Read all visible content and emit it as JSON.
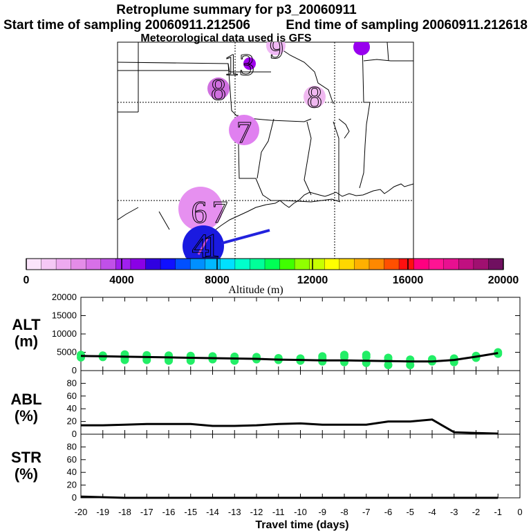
{
  "title": "Retroplume summary for p3_20060911",
  "start_label": "Start time of sampling 20060911.212506",
  "end_label": "End time of sampling 20060911.212618",
  "met_label": "Meteorological data used is GFS",
  "map": {
    "labels": [
      {
        "text": "13",
        "color": "#9900ee"
      },
      {
        "text": "9",
        "color": "#e6a0f0"
      },
      {
        "text": "8",
        "color": "#d070e0"
      },
      {
        "text": "8",
        "color": "#f0b8f0"
      },
      {
        "text": "7",
        "color": "#e080f0"
      },
      {
        "text": "6",
        "color": "#e690f0"
      },
      {
        "text": "7",
        "color": "#e690f0"
      },
      {
        "text": "4",
        "color": "#2222dd"
      },
      {
        "text": "1",
        "color": "#1111cc"
      }
    ]
  },
  "colorbar": {
    "colors": [
      "#fbe4fb",
      "#f5c8f5",
      "#eeaaf0",
      "#e48ce8",
      "#d870e8",
      "#c050e8",
      "#a020ee",
      "#8a00e6",
      "#3000e0",
      "#1010ff",
      "#0050ff",
      "#0090ff",
      "#00b8ff",
      "#00e0ff",
      "#00ffcc",
      "#00ff99",
      "#00ff55",
      "#40ff00",
      "#90ff00",
      "#c8ff00",
      "#ffff00",
      "#ffd700",
      "#ffb000",
      "#ff8800",
      "#ff5000",
      "#ff1010",
      "#ff0080",
      "#ff1493",
      "#e81090",
      "#c01080",
      "#a01070",
      "#701060"
    ],
    "ticks": [
      "0",
      "4000",
      "8000",
      "12000",
      "16000",
      "20000"
    ],
    "label": "Altitude (m)"
  },
  "x_axis": {
    "ticks": [
      "-20",
      "-19",
      "-18",
      "-17",
      "-16",
      "-15",
      "-14",
      "-13",
      "-12",
      "-11",
      "-10",
      "-9",
      "-8",
      "-7",
      "-6",
      "-5",
      "-4",
      "-3",
      "-2",
      "-1",
      "0"
    ],
    "label": "Travel time (days)"
  },
  "chart_data": [
    {
      "type": "line",
      "name": "ALT",
      "ylabel": "ALT (m)",
      "yticks": [
        "0",
        "5000",
        "10000",
        "15000",
        "20000"
      ],
      "ylim": [
        0,
        20000
      ],
      "x": [
        -20,
        -19,
        -18,
        -17,
        -16,
        -15,
        -14,
        -13,
        -12,
        -11,
        -10,
        -9,
        -8,
        -7,
        -6,
        -5,
        -4,
        -3,
        -2,
        -1
      ],
      "values": [
        4000,
        3900,
        3800,
        3700,
        3600,
        3500,
        3400,
        3300,
        3200,
        3000,
        2900,
        2800,
        2800,
        2700,
        2600,
        2500,
        2500,
        2900,
        3800,
        4800
      ],
      "scatter_points": [
        [
          -20,
          4300
        ],
        [
          -20,
          3600
        ],
        [
          -19,
          4100
        ],
        [
          -19,
          3700
        ],
        [
          -18,
          4400
        ],
        [
          -18,
          3500
        ],
        [
          -18,
          2900
        ],
        [
          -17,
          4200
        ],
        [
          -17,
          3500
        ],
        [
          -17,
          2900
        ],
        [
          -16,
          4100
        ],
        [
          -16,
          3100
        ],
        [
          -16,
          2700
        ],
        [
          -15,
          4000
        ],
        [
          -15,
          3200
        ],
        [
          -15,
          2700
        ],
        [
          -14,
          3900
        ],
        [
          -14,
          3100
        ],
        [
          -13,
          3800
        ],
        [
          -13,
          3100
        ],
        [
          -13,
          2700
        ],
        [
          -12,
          3700
        ],
        [
          -12,
          3100
        ],
        [
          -11,
          3400
        ],
        [
          -11,
          2900
        ],
        [
          -10,
          3300
        ],
        [
          -10,
          2700
        ],
        [
          -9,
          3900
        ],
        [
          -9,
          3300
        ],
        [
          -9,
          2500
        ],
        [
          -8,
          4300
        ],
        [
          -8,
          3700
        ],
        [
          -8,
          2300
        ],
        [
          -7,
          4300
        ],
        [
          -7,
          3700
        ],
        [
          -7,
          2100
        ],
        [
          -6,
          3500
        ],
        [
          -6,
          2900
        ],
        [
          -6,
          1500
        ],
        [
          -5,
          3000
        ],
        [
          -5,
          2600
        ],
        [
          -5,
          1500
        ],
        [
          -4,
          3100
        ],
        [
          -4,
          2500
        ],
        [
          -3,
          3300
        ],
        [
          -3,
          2900
        ],
        [
          -3,
          2300
        ],
        [
          -2,
          4000
        ],
        [
          -2,
          3500
        ],
        [
          -1,
          5000
        ],
        [
          -1,
          4600
        ]
      ]
    },
    {
      "type": "line",
      "name": "ABL",
      "ylabel": "ABL (%)",
      "yticks": [
        "0",
        "20",
        "40",
        "60",
        "80"
      ],
      "ylim": [
        0,
        100
      ],
      "x": [
        -20,
        -19,
        -18,
        -17,
        -16,
        -15,
        -14,
        -13,
        -12,
        -11,
        -10,
        -9,
        -8,
        -7,
        -6,
        -5,
        -4,
        -3,
        -2,
        -1
      ],
      "values": [
        14,
        14,
        15,
        16,
        16,
        16,
        13,
        13,
        14,
        16,
        17,
        15,
        15,
        15,
        20,
        20,
        23,
        3,
        2,
        1
      ]
    },
    {
      "type": "line",
      "name": "STR",
      "ylabel": "STR (%)",
      "yticks": [
        "0",
        "20",
        "40",
        "60",
        "80"
      ],
      "ylim": [
        0,
        100
      ],
      "x": [
        -20,
        -19,
        -18,
        -17,
        -16,
        -15,
        -14,
        -13,
        -12,
        -11,
        -10,
        -9,
        -8,
        -7,
        -6,
        -5,
        -4,
        -3,
        -2,
        -1
      ],
      "values": [
        2,
        1,
        0,
        0,
        0,
        0,
        0,
        0,
        0,
        0,
        0,
        0,
        0,
        0,
        0,
        0,
        0,
        0,
        0,
        0
      ]
    }
  ]
}
